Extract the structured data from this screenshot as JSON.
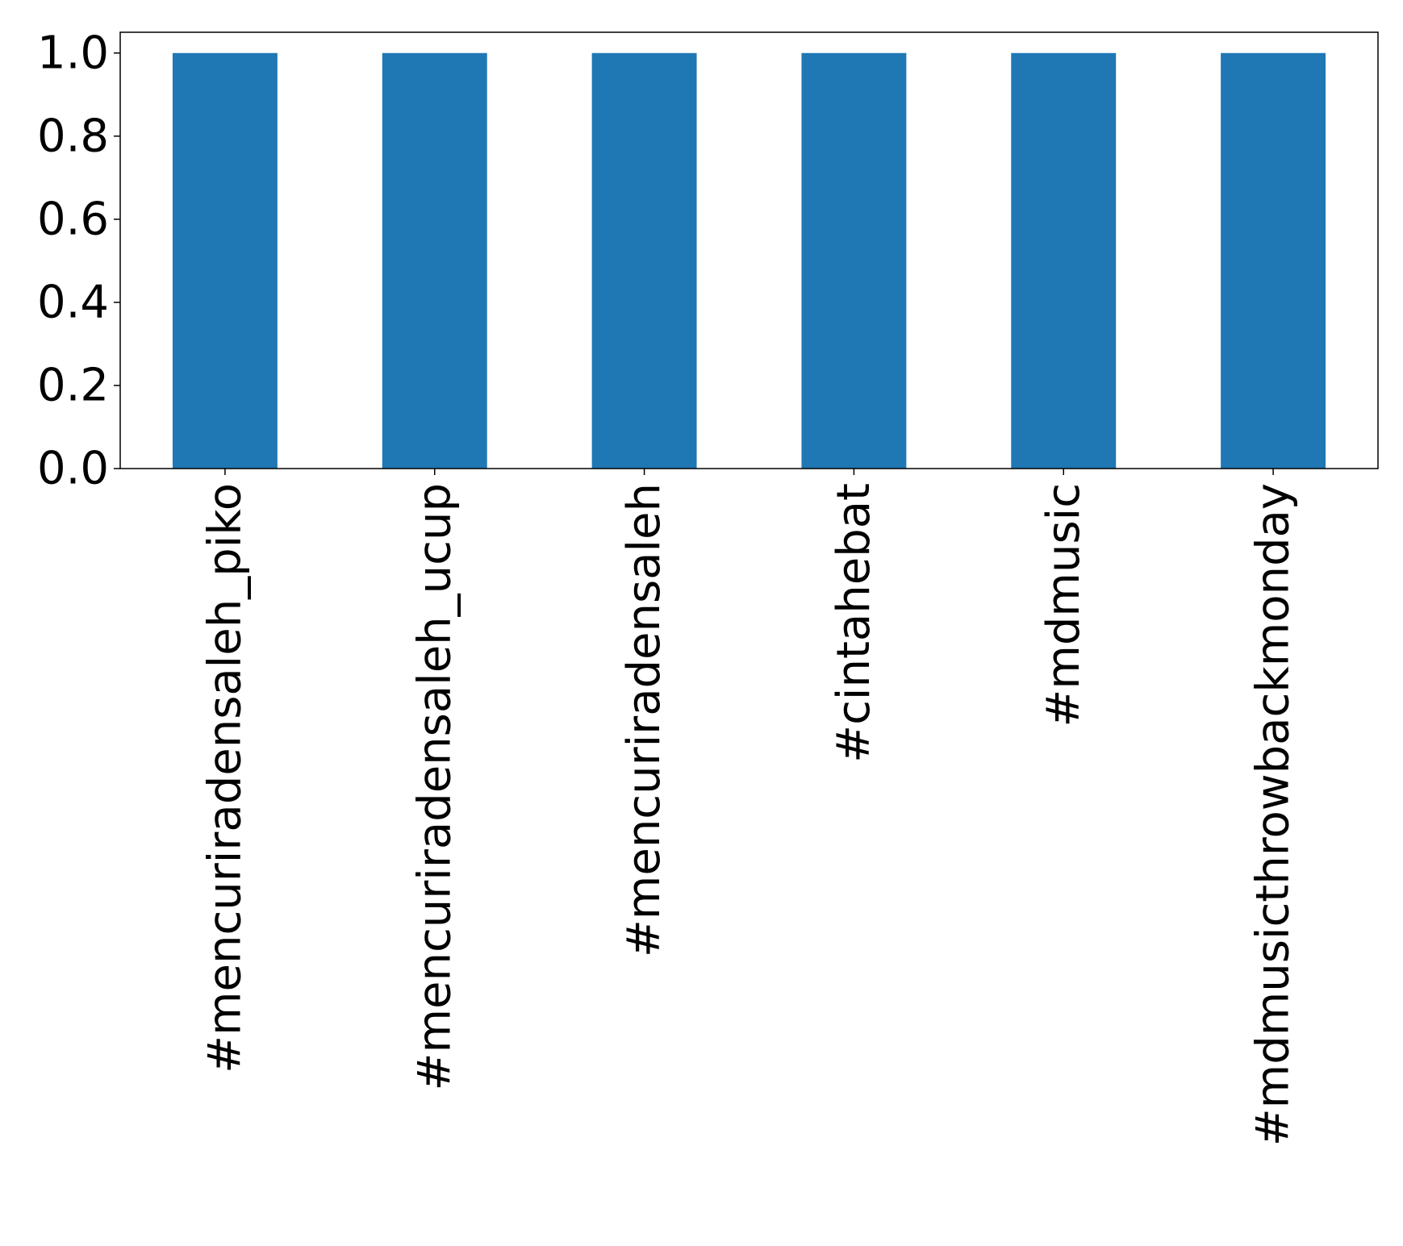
{
  "chart_data": {
    "type": "bar",
    "categories": [
      "#mencuriradensaleh_piko",
      "#mencuriradensaleh_ucup",
      "#mencuriradensaleh",
      "#cintahebat",
      "#mdmusic",
      "#mdmusicthrowbackmonday"
    ],
    "values": [
      1,
      1,
      1,
      1,
      1,
      1
    ],
    "color": "#1f77b4",
    "ylim": [
      0,
      1.05
    ],
    "yticks": [
      {
        "value": 0,
        "label": "0.0"
      },
      0.2,
      0.4,
      0.6,
      0.8,
      {
        "value": 1,
        "label": "1.0"
      }
    ],
    "grid": false
  }
}
